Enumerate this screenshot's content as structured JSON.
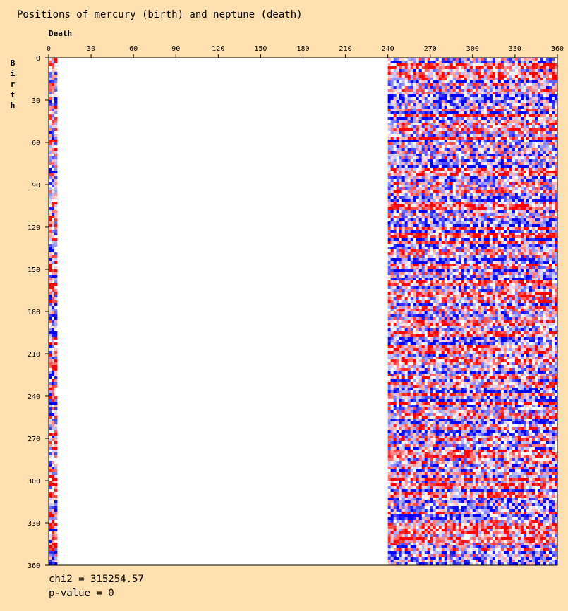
{
  "chart_data": {
    "type": "heatmap",
    "title": "Positions of mercury (birth) and neptune (death)",
    "xlabel": "Death",
    "ylabel": "Birth",
    "xlim": [
      0,
      360
    ],
    "ylim": [
      0,
      360
    ],
    "x_ticks": [
      0,
      30,
      60,
      90,
      120,
      150,
      180,
      210,
      240,
      270,
      300,
      330,
      360
    ],
    "y_ticks": [
      0,
      30,
      60,
      90,
      120,
      150,
      180,
      210,
      240,
      270,
      300,
      330,
      360
    ],
    "bin_size_deg": 2,
    "occupied_x_ranges": [
      [
        0,
        6
      ],
      [
        240,
        360
      ]
    ],
    "color_scale": {
      "above_expected": "#ff0000",
      "below_expected": "#0000ff",
      "near_expected": "#ffffff"
    },
    "stats": {
      "chi2": "chi2 = 315254.57",
      "p_value": "p-value = 0"
    }
  }
}
